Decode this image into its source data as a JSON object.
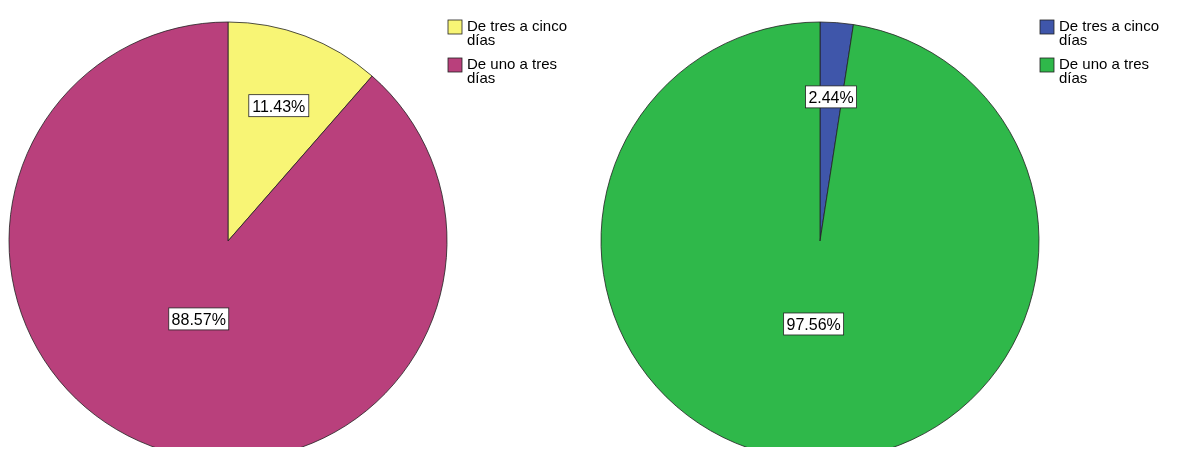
{
  "chart_data": [
    {
      "type": "pie",
      "categories": [
        "De tres a cinco días",
        "De uno a tres días"
      ],
      "values": [
        11.43,
        88.57
      ],
      "colors": [
        "#f8f575",
        "#b9407c"
      ],
      "value_labels": [
        "11.43%",
        "88.57%"
      ],
      "legend": "top right"
    },
    {
      "type": "pie",
      "categories": [
        "De tres a cinco días",
        "De uno a tres días"
      ],
      "values": [
        2.44,
        97.56
      ],
      "colors": [
        "#3f56aa",
        "#2fb84a"
      ],
      "value_labels": [
        "2.44%",
        "97.56%"
      ],
      "legend": "top right"
    }
  ]
}
